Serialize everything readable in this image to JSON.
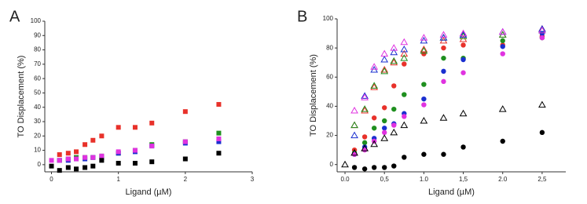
{
  "chart_data": [
    {
      "type": "scatter",
      "panel_label": "A",
      "x_label": "Ligand (µM)",
      "y_label": "TO Displacement (%)",
      "xlim": [
        -0.1,
        3
      ],
      "ylim": [
        -5,
        100
      ],
      "xticks": [
        0,
        1,
        2,
        3
      ],
      "yticks": [
        0,
        10,
        20,
        30,
        40,
        50,
        60,
        70,
        80,
        90,
        100
      ],
      "series": [
        {
          "color": "#e8312a",
          "marker": "square",
          "x": [
            0.12,
            0.25,
            0.37,
            0.5,
            0.62,
            0.75,
            1.0,
            1.25,
            1.5,
            2.0,
            2.5
          ],
          "values": [
            7,
            8,
            9,
            14,
            17,
            20,
            26,
            26,
            29,
            37,
            42
          ]
        },
        {
          "color": "#1f8f1f",
          "marker": "square",
          "x": [
            0.12,
            0.25,
            0.37,
            0.5,
            0.62,
            0.75,
            1.0,
            1.25,
            1.5,
            2.0,
            2.5
          ],
          "values": [
            3,
            4,
            5,
            5,
            5,
            6,
            8,
            10,
            14,
            16,
            22
          ]
        },
        {
          "color": "#1a2fd0",
          "marker": "square",
          "x": [
            0.12,
            0.25,
            0.37,
            0.5,
            0.62,
            0.75,
            1.0,
            1.25,
            1.5,
            2.0,
            2.5
          ],
          "values": [
            3,
            3,
            4,
            4,
            5,
            5,
            8,
            9,
            13,
            15,
            16
          ]
        },
        {
          "color": "#e033e0",
          "marker": "square",
          "x": [
            0,
            0.12,
            0.25,
            0.37,
            0.5,
            0.62,
            0.75,
            1.0,
            1.25,
            1.5,
            2.0,
            2.5
          ],
          "values": [
            3,
            3,
            4,
            4,
            5,
            5,
            6,
            9,
            10,
            13,
            16,
            18
          ]
        },
        {
          "color": "#000000",
          "marker": "square",
          "x": [
            0,
            0.12,
            0.25,
            0.37,
            0.5,
            0.62,
            0.75,
            1.0,
            1.25,
            1.5,
            2.0,
            2.5
          ],
          "values": [
            -1,
            -4,
            -2,
            -3,
            -2,
            -1,
            3,
            1,
            1,
            2,
            4,
            8
          ]
        }
      ]
    },
    {
      "type": "scatter",
      "panel_label": "B",
      "x_label": "Ligand (µM)",
      "y_label": "TO Displacement (%)",
      "xlim": [
        -0.1,
        2.8
      ],
      "ylim": [
        -5,
        100
      ],
      "xticks": [
        {
          "value": 0,
          "label": "0.0"
        },
        {
          "value": 0.5,
          "label": "0,5"
        },
        {
          "value": 1,
          "label": "1.0"
        },
        {
          "value": 1.5,
          "label": "1,5"
        },
        {
          "value": 2,
          "label": "2.0"
        },
        {
          "value": 2.5,
          "label": "2,5"
        }
      ],
      "yticks": [
        0,
        20,
        40,
        60,
        80,
        100
      ],
      "series": [
        {
          "color": "#e8312a",
          "marker": "circle",
          "x": [
            0.12,
            0.25,
            0.37,
            0.5,
            0.62,
            0.75,
            1.0,
            1.25,
            1.5,
            2.0,
            2.5
          ],
          "values": [
            10,
            19,
            32,
            39,
            54,
            69,
            76,
            80,
            82,
            82,
            88
          ]
        },
        {
          "color": "#1f8f1f",
          "marker": "circle",
          "x": [
            0.12,
            0.25,
            0.37,
            0.5,
            0.62,
            0.75,
            1.0,
            1.25,
            1.5,
            2.0,
            2.5
          ],
          "values": [
            8,
            15,
            25,
            30,
            38,
            48,
            55,
            73,
            73,
            85,
            87
          ]
        },
        {
          "color": "#1a2fd0",
          "marker": "circle",
          "x": [
            0.12,
            0.25,
            0.37,
            0.5,
            0.62,
            0.75,
            1.0,
            1.25,
            1.5,
            2.0,
            2.5
          ],
          "values": [
            7,
            12,
            18,
            25,
            28,
            35,
            45,
            64,
            72,
            81,
            90
          ]
        },
        {
          "color": "#e033e0",
          "marker": "circle",
          "x": [
            0.12,
            0.25,
            0.37,
            0.5,
            0.62,
            0.75,
            1.0,
            1.25,
            1.5,
            2.0,
            2.5
          ],
          "values": [
            7,
            10,
            16,
            22,
            27,
            33,
            41,
            57,
            63,
            76,
            87
          ]
        },
        {
          "color": "#000000",
          "marker": "circle",
          "x": [
            0.12,
            0.25,
            0.37,
            0.5,
            0.62,
            0.75,
            1.0,
            1.25,
            1.5,
            2.0,
            2.5
          ],
          "values": [
            -2,
            -3,
            -2,
            -2,
            -1,
            5,
            7,
            7,
            12,
            16,
            22
          ]
        },
        {
          "color": "#e8312a",
          "marker": "triangle-open",
          "x": [
            0.12,
            0.25,
            0.37,
            0.5,
            0.62,
            0.75,
            1.0,
            1.25,
            1.5,
            2.0,
            2.5
          ],
          "values": [
            27,
            37,
            53,
            65,
            70,
            76,
            79,
            85,
            86,
            89,
            93
          ]
        },
        {
          "color": "#1f8f1f",
          "marker": "triangle-open",
          "x": [
            0.12,
            0.25,
            0.37,
            0.5,
            0.62,
            0.75,
            1.0,
            1.25,
            1.5,
            2.0,
            2.5
          ],
          "values": [
            27,
            38,
            54,
            64,
            71,
            73,
            78,
            87,
            88,
            89,
            92
          ]
        },
        {
          "color": "#1a2fd0",
          "marker": "triangle-open",
          "x": [
            0.12,
            0.25,
            0.37,
            0.5,
            0.62,
            0.75,
            1.0,
            1.25,
            1.5,
            2.0,
            2.5
          ],
          "values": [
            20,
            47,
            65,
            72,
            77,
            79,
            85,
            87,
            89,
            91,
            93
          ]
        },
        {
          "color": "#e033e0",
          "marker": "triangle-open",
          "x": [
            0.12,
            0.25,
            0.37,
            0.5,
            0.62,
            0.75,
            1.0,
            1.25,
            1.5,
            2.0,
            2.5
          ],
          "values": [
            37,
            46,
            67,
            76,
            80,
            84,
            87,
            89,
            90,
            91,
            92
          ]
        },
        {
          "color": "#000000",
          "marker": "triangle-open",
          "x": [
            0,
            0.12,
            0.25,
            0.37,
            0.5,
            0.62,
            0.75,
            1.0,
            1.25,
            1.5,
            2.0,
            2.5
          ],
          "values": [
            0,
            8,
            11,
            14,
            18,
            22,
            27,
            30,
            32,
            35,
            38,
            41
          ]
        }
      ]
    }
  ]
}
